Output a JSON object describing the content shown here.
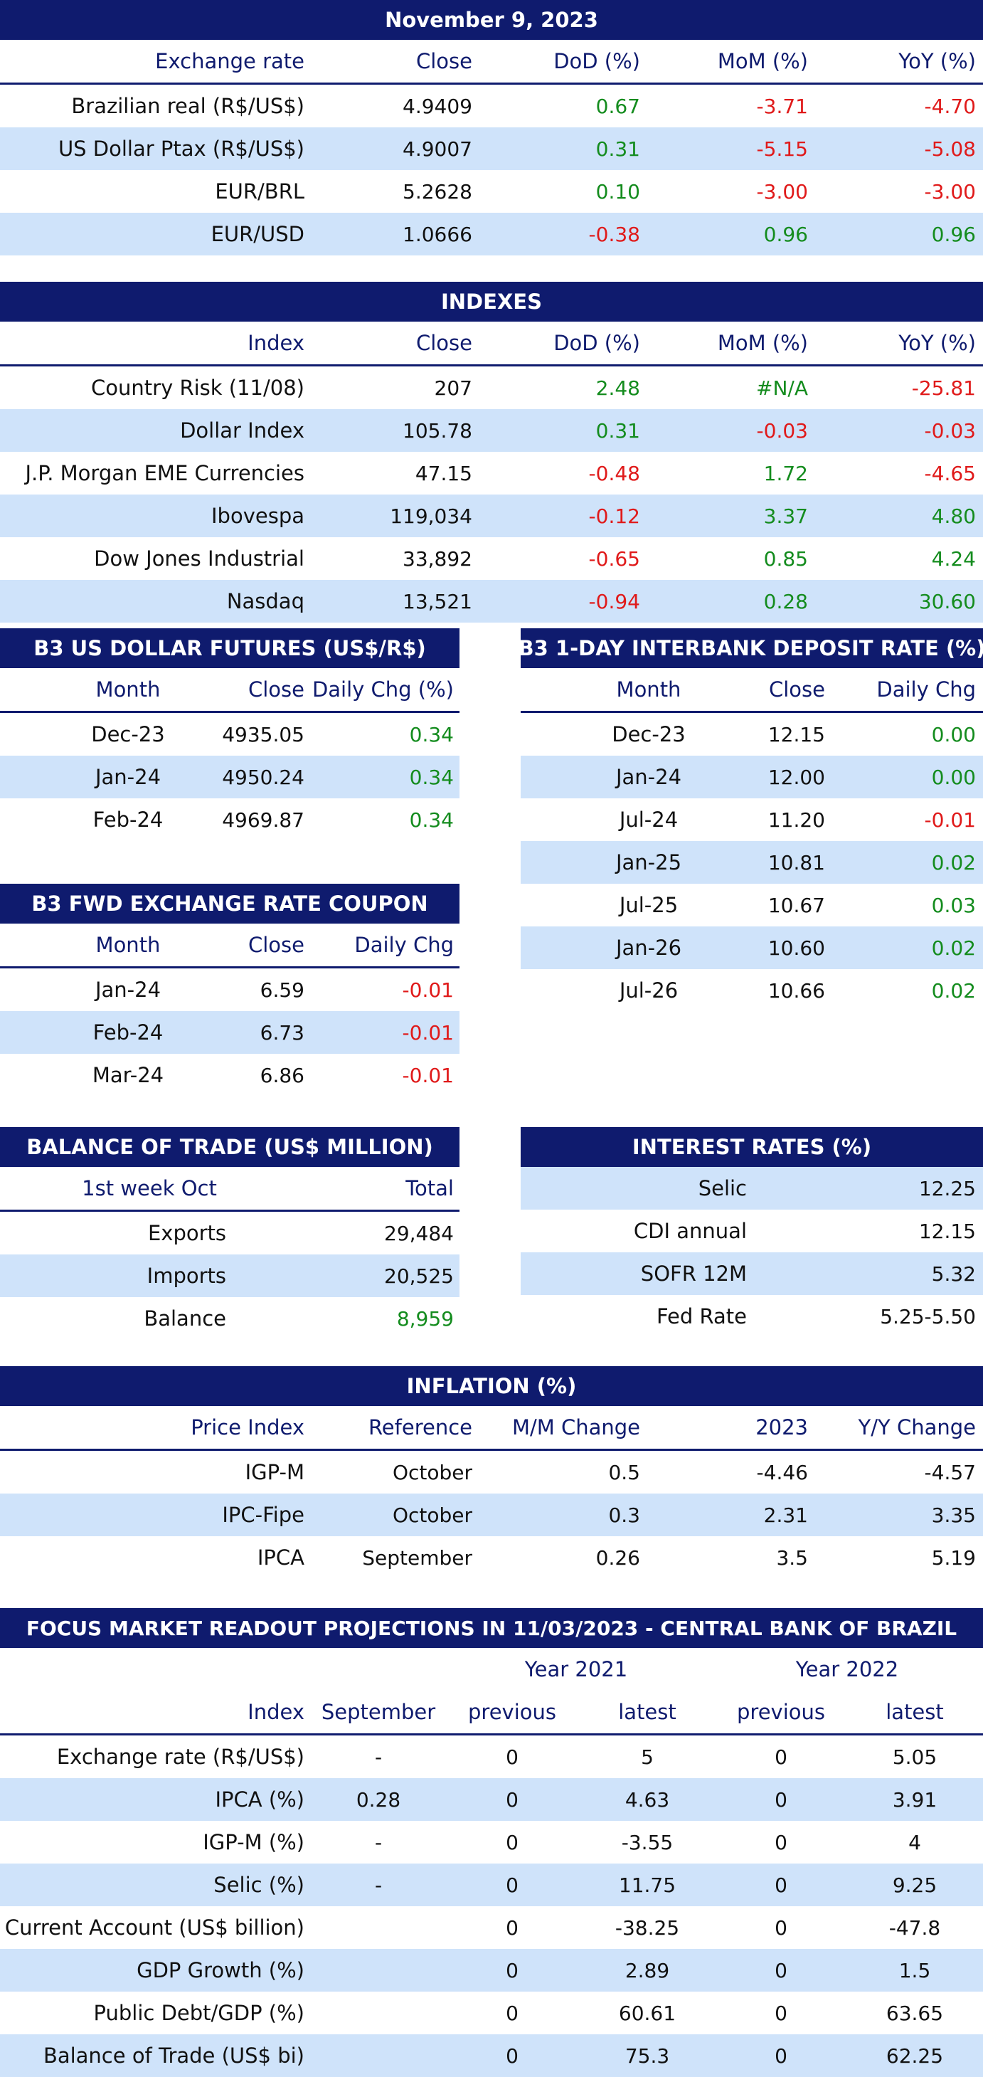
{
  "exchange": {
    "title": "November 9, 2023",
    "headers": [
      "Exchange rate",
      "Close",
      "DoD (%)",
      "MoM (%)",
      "YoY (%)"
    ],
    "rows": [
      {
        "name": "Brazilian real (R$/US$)",
        "close": "4.9409",
        "dod": "0.67",
        "mom": "-3.71",
        "yoy": "-4.70"
      },
      {
        "name": "US Dollar Ptax (R$/US$)",
        "close": "4.9007",
        "dod": "0.31",
        "mom": "-5.15",
        "yoy": "-5.08"
      },
      {
        "name": "EUR/BRL",
        "close": "5.2628",
        "dod": "0.10",
        "mom": "-3.00",
        "yoy": "-3.00"
      },
      {
        "name": "EUR/USD",
        "close": "1.0666",
        "dod": "-0.38",
        "mom": "0.96",
        "yoy": "0.96"
      }
    ]
  },
  "indexes": {
    "title": "INDEXES",
    "headers": [
      "Index",
      "Close",
      "DoD (%)",
      "MoM (%)",
      "YoY (%)"
    ],
    "rows": [
      {
        "name": "Country Risk (11/08)",
        "close": "207",
        "dod": "2.48",
        "mom": "#N/A",
        "yoy": "-25.81"
      },
      {
        "name": "Dollar Index",
        "close": "105.78",
        "dod": "0.31",
        "mom": "-0.03",
        "yoy": "-0.03"
      },
      {
        "name": "J.P. Morgan EME Currencies",
        "close": "47.15",
        "dod": "-0.48",
        "mom": "1.72",
        "yoy": "-4.65"
      },
      {
        "name": "Ibovespa",
        "close": "119,034",
        "dod": "-0.12",
        "mom": "3.37",
        "yoy": "4.80"
      },
      {
        "name": "Dow Jones Industrial",
        "close": "33,892",
        "dod": "-0.65",
        "mom": "0.85",
        "yoy": "4.24"
      },
      {
        "name": "Nasdaq",
        "close": "13,521",
        "dod": "-0.94",
        "mom": "0.28",
        "yoy": "30.60"
      }
    ]
  },
  "futures": {
    "title": "B3 US DOLLAR FUTURES (US$/R$)",
    "headers": [
      "Month",
      "Close",
      "Daily Chg (%)"
    ],
    "rows": [
      {
        "month": "Dec-23",
        "close": "4935.05",
        "chg": "0.34"
      },
      {
        "month": "Jan-24",
        "close": "4950.24",
        "chg": "0.34"
      },
      {
        "month": "Feb-24",
        "close": "4969.87",
        "chg": "0.34"
      }
    ]
  },
  "interbank": {
    "title": "B3 1-DAY INTERBANK DEPOSIT RATE (%)",
    "headers": [
      "Month",
      "Close",
      "Daily Chg"
    ],
    "rows": [
      {
        "month": "Dec-23",
        "close": "12.15",
        "chg": "0.00"
      },
      {
        "month": "Jan-24",
        "close": "12.00",
        "chg": "0.00"
      },
      {
        "month": "Jul-24",
        "close": "11.20",
        "chg": "-0.01"
      },
      {
        "month": "Jan-25",
        "close": "10.81",
        "chg": "0.02"
      },
      {
        "month": "Jul-25",
        "close": "10.67",
        "chg": "0.03"
      },
      {
        "month": "Jan-26",
        "close": "10.60",
        "chg": "0.02"
      },
      {
        "month": "Jul-26",
        "close": "10.66",
        "chg": "0.02"
      }
    ]
  },
  "coupon": {
    "title": "B3 FWD EXCHANGE RATE COUPON",
    "headers": [
      "Month",
      "Close",
      "Daily Chg"
    ],
    "rows": [
      {
        "month": "Jan-24",
        "close": "6.59",
        "chg": "-0.01"
      },
      {
        "month": "Feb-24",
        "close": "6.73",
        "chg": "-0.01"
      },
      {
        "month": "Mar-24",
        "close": "6.86",
        "chg": "-0.01"
      }
    ]
  },
  "trade": {
    "title": "BALANCE OF TRADE (US$ MILLION)",
    "headers": [
      "1st week Oct",
      "Total"
    ],
    "rows": [
      {
        "name": "Exports",
        "total": "29,484"
      },
      {
        "name": "Imports",
        "total": "20,525"
      },
      {
        "name": "Balance",
        "total": "8,959"
      }
    ]
  },
  "rates": {
    "title": "INTEREST RATES (%)",
    "rows": [
      {
        "name": "Selic",
        "value": "12.25"
      },
      {
        "name": "CDI annual",
        "value": "12.15"
      },
      {
        "name": "SOFR 12M",
        "value": "5.32"
      },
      {
        "name": "Fed Rate",
        "value": "5.25-5.50"
      }
    ]
  },
  "inflation": {
    "title": "INFLATION (%)",
    "headers": [
      "Price Index",
      "Reference",
      "M/M Change",
      "2023",
      "Y/Y Change"
    ],
    "rows": [
      {
        "name": "IGP-M",
        "ref": "October",
        "mm": "0.5",
        "y2023": "-4.46",
        "yy": "-4.57"
      },
      {
        "name": "IPC-Fipe",
        "ref": "October",
        "mm": "0.3",
        "y2023": "2.31",
        "yy": "3.35"
      },
      {
        "name": "IPCA",
        "ref": "September",
        "mm": "0.26",
        "y2023": "3.5",
        "yy": "5.19"
      }
    ]
  },
  "focus": {
    "title": "FOCUS MARKET READOUT PROJECTIONS IN 11/03/2023 - CENTRAL BANK OF BRAZIL",
    "year_a": "Year 2021",
    "year_b": "Year 2022",
    "headers": [
      "Index",
      "September",
      "previous",
      "latest",
      "previous",
      "latest"
    ],
    "rows": [
      {
        "name": "Exchange rate (R$/US$)",
        "sep": "-",
        "p1": "0",
        "l1": "5",
        "p2": "0",
        "l2": "5.05"
      },
      {
        "name": "IPCA (%)",
        "sep": "0.28",
        "p1": "0",
        "l1": "4.63",
        "p2": "0",
        "l2": "3.91"
      },
      {
        "name": "IGP-M (%)",
        "sep": "-",
        "p1": "0",
        "l1": "-3.55",
        "p2": "0",
        "l2": "4"
      },
      {
        "name": "Selic (%)",
        "sep": "-",
        "p1": "0",
        "l1": "11.75",
        "p2": "0",
        "l2": "9.25"
      },
      {
        "name": "Current Account (US$ billion)",
        "sep": "",
        "p1": "0",
        "l1": "-38.25",
        "p2": "0",
        "l2": "-47.8"
      },
      {
        "name": "GDP Growth (%)",
        "sep": "",
        "p1": "0",
        "l1": "2.89",
        "p2": "0",
        "l2": "1.5"
      },
      {
        "name": "Public Debt/GDP (%)",
        "sep": "",
        "p1": "0",
        "l1": "60.61",
        "p2": "0",
        "l2": "63.65"
      },
      {
        "name": "Balance of Trade (US$ bi)",
        "sep": "",
        "p1": "0",
        "l1": "75.3",
        "p2": "0",
        "l2": "62.25"
      }
    ]
  },
  "colors": {
    "header_bg": "#0f1b6e",
    "stripe": "#cfe3fa",
    "positive": "#148c1e",
    "negative": "#e01a1a"
  }
}
